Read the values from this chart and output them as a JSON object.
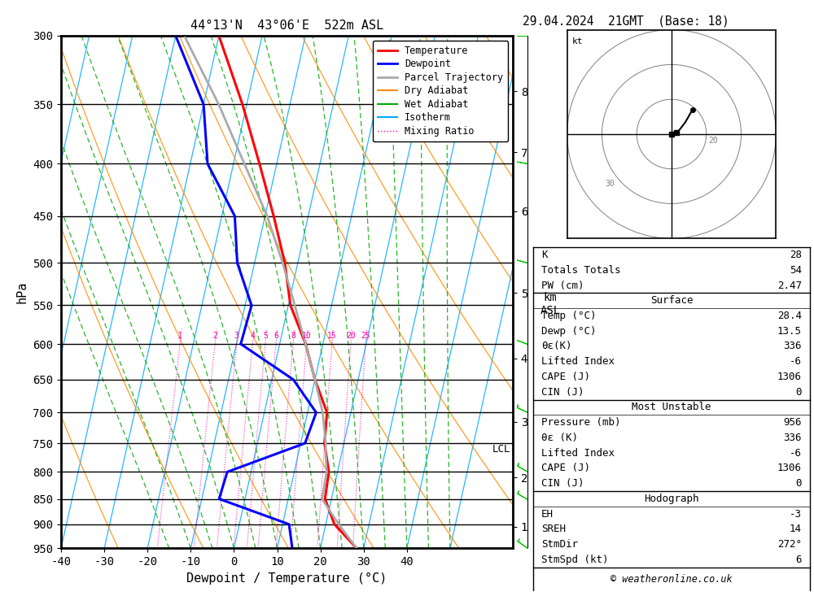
{
  "title_left": "44°13'N  43°06'E  522m ASL",
  "title_right": "29.04.2024  21GMT  (Base: 18)",
  "xlabel": "Dewpoint / Temperature (°C)",
  "ylabel_left": "hPa",
  "p_levels": [
    300,
    350,
    400,
    450,
    500,
    550,
    600,
    650,
    700,
    750,
    800,
    850,
    900,
    950
  ],
  "temp_color": "#ff0000",
  "dewp_color": "#0000ff",
  "parcel_color": "#aaaaaa",
  "dry_adiabat_color": "#ff8c00",
  "wet_adiabat_color": "#00aa00",
  "isotherm_color": "#00aaff",
  "mixing_color": "#ff00aa",
  "background_color": "#ffffff",
  "temp_data": [
    [
      950,
      28.4
    ],
    [
      900,
      22.0
    ],
    [
      850,
      18.5
    ],
    [
      800,
      18.0
    ],
    [
      750,
      15.5
    ],
    [
      700,
      14.5
    ],
    [
      650,
      10.0
    ],
    [
      600,
      6.0
    ],
    [
      550,
      0.5
    ],
    [
      500,
      -3.0
    ],
    [
      450,
      -8.0
    ],
    [
      400,
      -14.0
    ],
    [
      350,
      -21.0
    ],
    [
      300,
      -30.0
    ]
  ],
  "dewp_data": [
    [
      950,
      13.5
    ],
    [
      900,
      11.5
    ],
    [
      850,
      -6.0
    ],
    [
      800,
      -5.5
    ],
    [
      750,
      11.0
    ],
    [
      700,
      12.0
    ],
    [
      650,
      5.0
    ],
    [
      600,
      -9.0
    ],
    [
      550,
      -8.5
    ],
    [
      500,
      -14.0
    ],
    [
      450,
      -17.0
    ],
    [
      400,
      -26.0
    ],
    [
      350,
      -30.0
    ],
    [
      300,
      -40.0
    ]
  ],
  "parcel_data": [
    [
      950,
      28.4
    ],
    [
      900,
      23.0
    ],
    [
      850,
      17.8
    ],
    [
      800,
      17.5
    ],
    [
      765,
      16.2
    ],
    [
      750,
      15.8
    ],
    [
      700,
      13.5
    ],
    [
      650,
      10.0
    ],
    [
      600,
      6.0
    ],
    [
      550,
      1.5
    ],
    [
      500,
      -3.5
    ],
    [
      450,
      -9.5
    ],
    [
      400,
      -17.5
    ],
    [
      350,
      -26.5
    ],
    [
      300,
      -38.0
    ]
  ],
  "mixing_ratios": [
    1,
    2,
    3,
    4,
    5,
    6,
    8,
    10,
    15,
    20,
    25
  ],
  "xmin": -40,
  "xmax": 38,
  "pmin": 300,
  "pmax": 950,
  "km_ticks": [
    1,
    2,
    3,
    4,
    5,
    6,
    7,
    8
  ],
  "km_pressures": [
    905,
    810,
    715,
    620,
    535,
    445,
    390,
    340
  ],
  "lcl_pressure": 760,
  "skew_factor": 23.0,
  "info_data": {
    "K": "28",
    "Totals Totals": "54",
    "PW (cm)": "2.47",
    "Surface_Temp": "28.4",
    "Surface_Dewp": "13.5",
    "Surface_theta": "336",
    "Surface_LI": "-6",
    "Surface_CAPE": "1306",
    "Surface_CIN": "0",
    "MU_Press": "956",
    "MU_theta": "336",
    "MU_LI": "-6",
    "MU_CAPE": "1306",
    "MU_CIN": "0",
    "Hodo_EH": "-3",
    "Hodo_SREH": "14",
    "Hodo_StmDir": "272°",
    "Hodo_StmSpd": "6"
  },
  "copyright": "© weatheronline.co.uk",
  "wind_barb_pressures": [
    300,
    400,
    500,
    600,
    700,
    800,
    850,
    950
  ],
  "wind_barb_speeds": [
    10,
    15,
    10,
    8,
    5,
    5,
    5,
    5
  ],
  "wind_barb_dirs": [
    270,
    280,
    270,
    265,
    260,
    255,
    250,
    245
  ]
}
